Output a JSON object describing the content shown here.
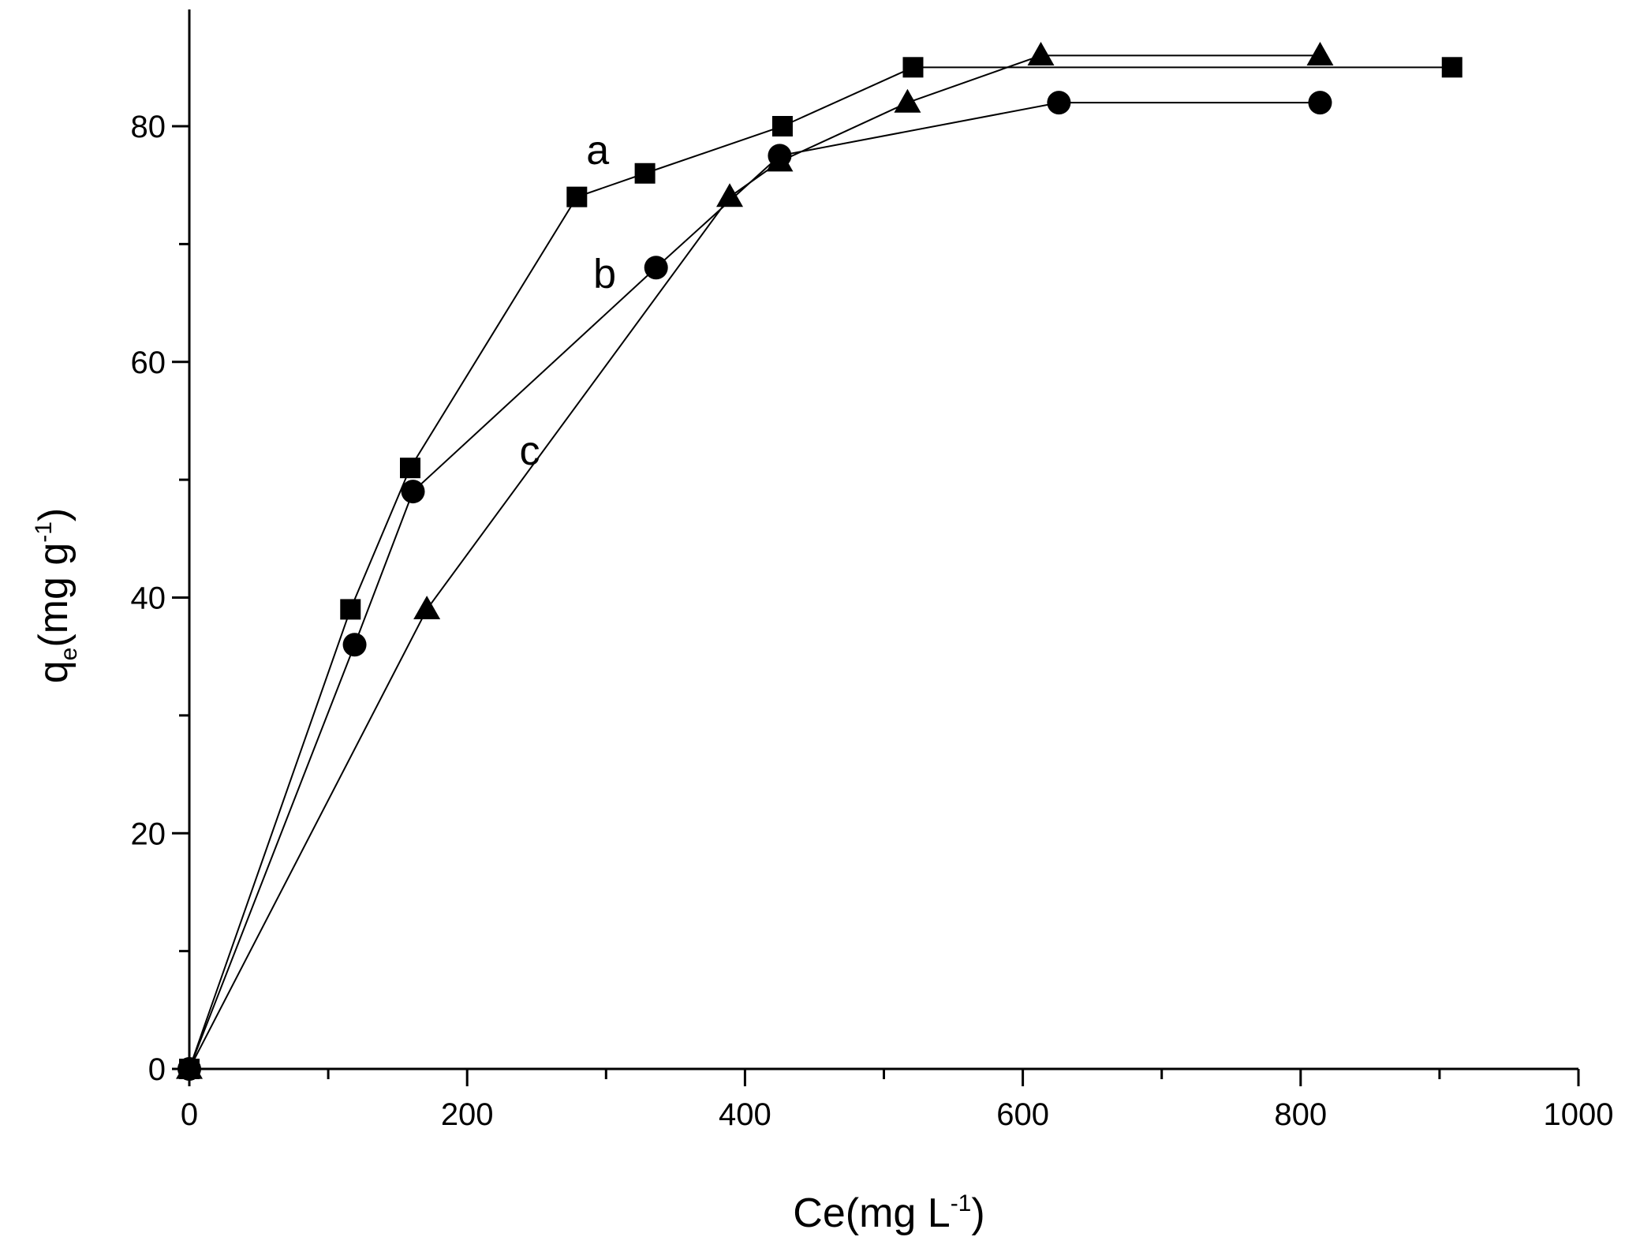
{
  "chart_data": {
    "type": "line",
    "title": "",
    "xlabel": {
      "base": "Ce(mg L",
      "sup": "-1",
      "tail": ")"
    },
    "ylabel": {
      "q": "q",
      "sub": "e",
      "mid": "(mg g",
      "sup": "-1",
      "tail": ")"
    },
    "xlim": [
      0,
      1000
    ],
    "ylim": [
      0,
      90
    ],
    "xticks": [
      0,
      200,
      400,
      600,
      800,
      1000
    ],
    "xticks_minor": [
      100,
      300,
      500,
      700,
      900
    ],
    "yticks": [
      0,
      20,
      40,
      60,
      80
    ],
    "yticks_minor": [
      10,
      30,
      50,
      70
    ],
    "grid": false,
    "series": [
      {
        "name": "a",
        "marker": "square",
        "x": [
          0,
          116,
          159,
          279,
          328,
          427,
          521,
          909
        ],
        "y": [
          0,
          39,
          51,
          74,
          76,
          80,
          85,
          85
        ],
        "label_at": [
          294,
          78
        ]
      },
      {
        "name": "b",
        "marker": "circle",
        "x": [
          0,
          119,
          161,
          336,
          425,
          626,
          814
        ],
        "y": [
          0,
          36,
          49,
          68,
          77.5,
          82,
          82
        ],
        "label_at": [
          299,
          67.5
        ]
      },
      {
        "name": "c",
        "marker": "triangle",
        "x": [
          0,
          171,
          389,
          425,
          517,
          613,
          814
        ],
        "y": [
          0,
          39,
          74,
          77,
          82,
          86,
          86
        ],
        "label_at": [
          245,
          52.5
        ]
      }
    ]
  }
}
